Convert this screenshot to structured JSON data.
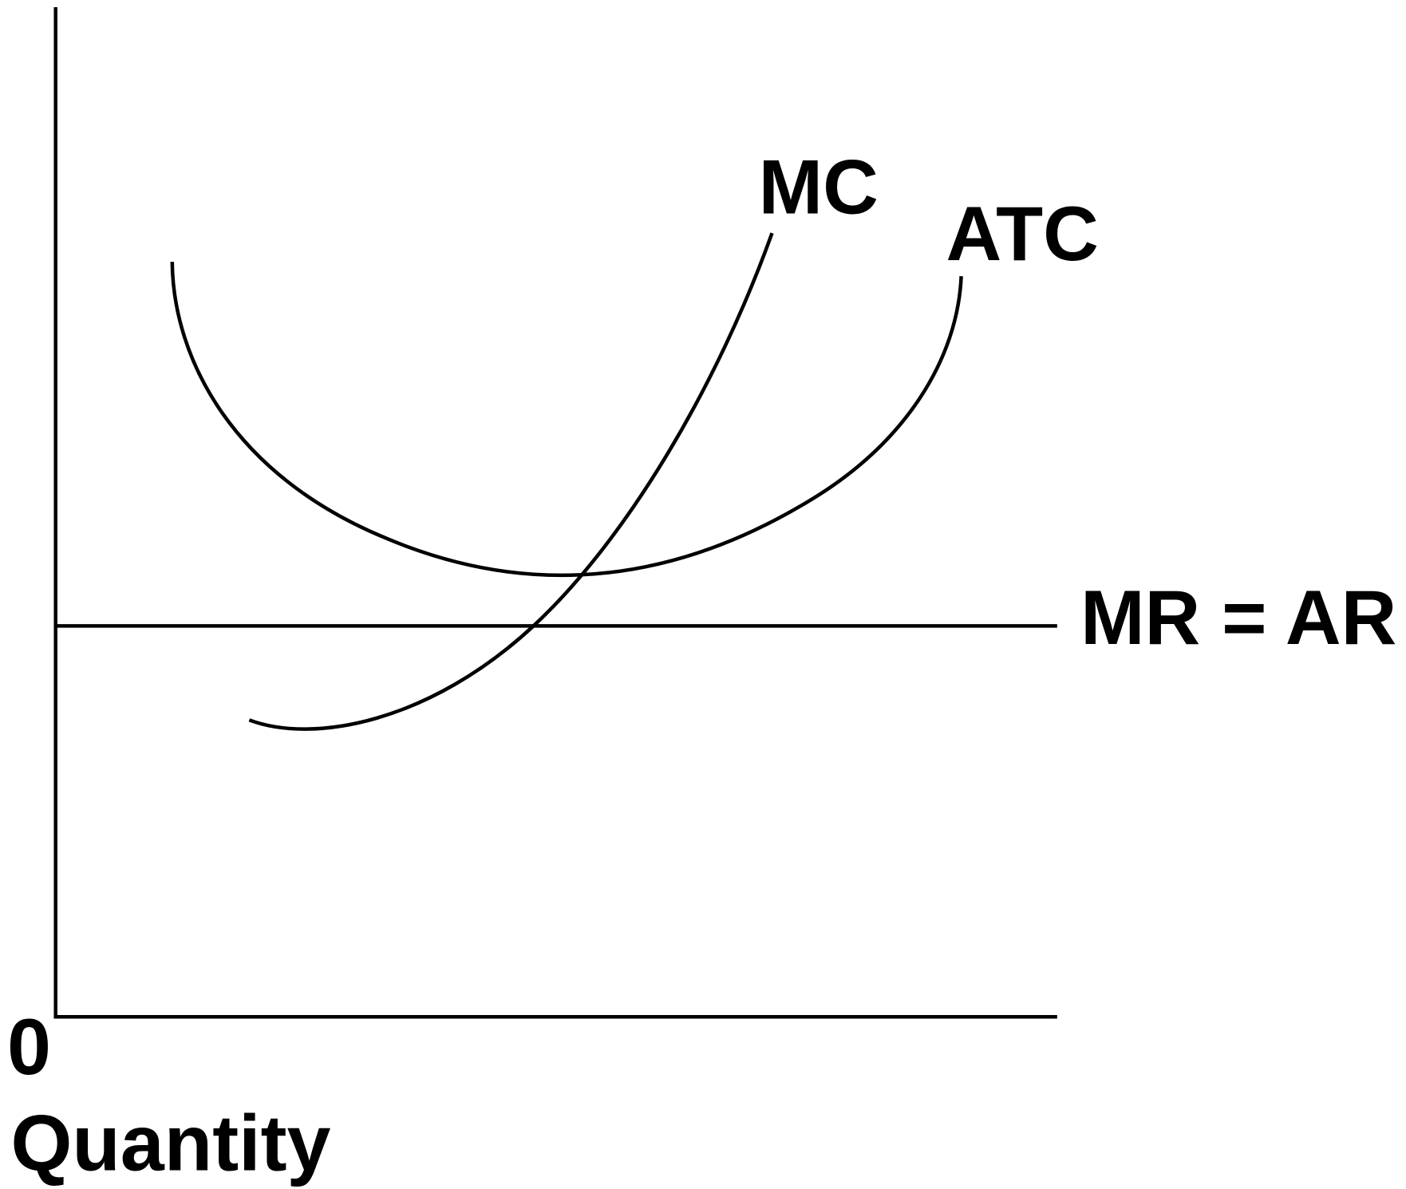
{
  "labels": {
    "mc": "MC",
    "atc": "ATC",
    "mr": "MR = AR",
    "origin": "0",
    "x_axis": "Quantity"
  }
}
